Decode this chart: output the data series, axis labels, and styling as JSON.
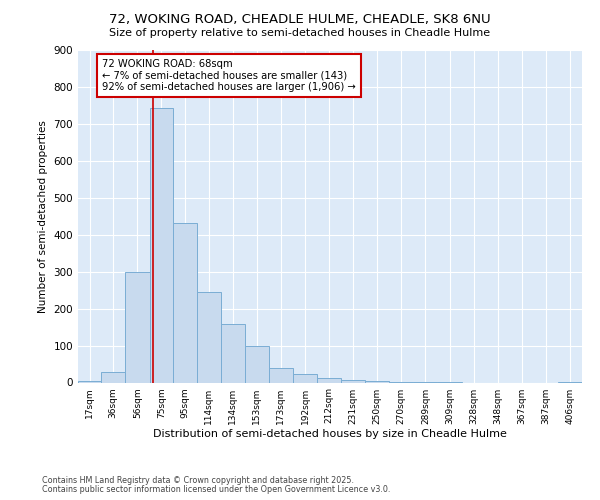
{
  "title": "72, WOKING ROAD, CHEADLE HULME, CHEADLE, SK8 6NU",
  "subtitle": "Size of property relative to semi-detached houses in Cheadle Hulme",
  "xlabel": "Distribution of semi-detached houses by size in Cheadle Hulme",
  "ylabel": "Number of semi-detached properties",
  "footnote1": "Contains HM Land Registry data © Crown copyright and database right 2025.",
  "footnote2": "Contains public sector information licensed under the Open Government Licence v3.0.",
  "annotation_title": "72 WOKING ROAD: 68sqm",
  "annotation_line1": "← 7% of semi-detached houses are smaller (143)",
  "annotation_line2": "92% of semi-detached houses are larger (1,906) →",
  "property_size": 68,
  "bar_categories": [
    "17sqm",
    "36sqm",
    "56sqm",
    "75sqm",
    "95sqm",
    "114sqm",
    "134sqm",
    "153sqm",
    "173sqm",
    "192sqm",
    "212sqm",
    "231sqm",
    "250sqm",
    "270sqm",
    "289sqm",
    "309sqm",
    "328sqm",
    "348sqm",
    "367sqm",
    "387sqm",
    "406sqm"
  ],
  "hist_counts": [
    5,
    28,
    298,
    742,
    433,
    245,
    157,
    98,
    40,
    22,
    12,
    8,
    3,
    2,
    1,
    1,
    0,
    0,
    0,
    0,
    1
  ],
  "bin_edges": [
    7.5,
    26.5,
    45.5,
    65.5,
    84.5,
    103.5,
    123.0,
    142.5,
    162.0,
    181.5,
    201.0,
    220.5,
    240.0,
    259.5,
    279.0,
    298.5,
    318.0,
    337.5,
    357.0,
    376.5,
    396.0,
    415.5
  ],
  "bar_color": "#c8daee",
  "bar_edge_color": "#7aadd4",
  "vline_color": "#cc0000",
  "annotation_box_color": "#cc0000",
  "bg_color": "#ddeaf8",
  "ylim": [
    0,
    900
  ],
  "yticks": [
    0,
    100,
    200,
    300,
    400,
    500,
    600,
    700,
    800,
    900
  ]
}
